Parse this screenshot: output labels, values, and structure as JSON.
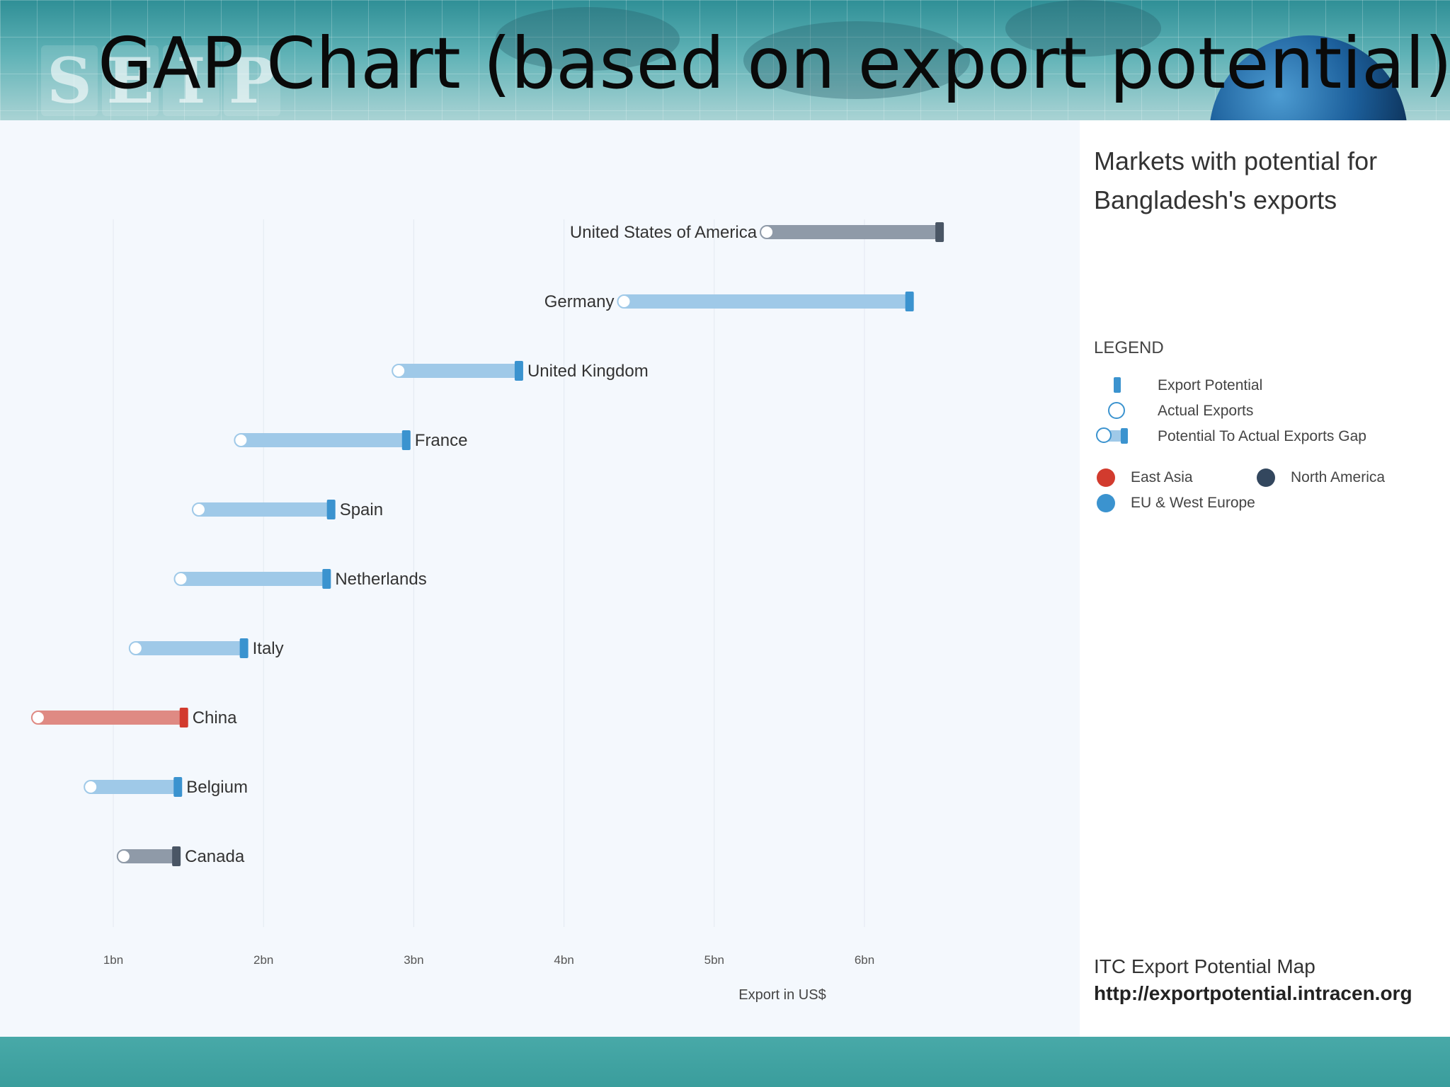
{
  "slide": {
    "title": "GAP Chart (based on export potential)",
    "logo_letters": [
      "S",
      "E",
      "I",
      "P"
    ]
  },
  "legend": {
    "title": "LEGEND",
    "export_potential": "Export Potential",
    "actual_exports": "Actual Exports",
    "gap": "Potential To Actual Exports Gap",
    "regions": [
      {
        "name": "East Asia",
        "color": "#d23b2e"
      },
      {
        "name": "North America",
        "color": "#33475e"
      },
      {
        "name": "EU & West Europe",
        "color": "#3b93cf"
      }
    ]
  },
  "source": {
    "name": "ITC Export Potential Map",
    "url": "http://exportpotential.intracen.org"
  },
  "chart_data": {
    "type": "bar",
    "title": "Markets with potential for Bangladesh's exports",
    "xlabel": "Export in US$",
    "ylabel": "",
    "xlim": [
      0.55,
      6.75
    ],
    "xticks": [
      1,
      2,
      3,
      4,
      5,
      6
    ],
    "xtick_labels": [
      "1bn",
      "2bn",
      "3bn",
      "4bn",
      "5bn",
      "6bn"
    ],
    "grid": true,
    "legend_position": "right",
    "region_colors": {
      "East Asia": {
        "bar": "#df8a83",
        "mark": "#d23b2e"
      },
      "North America": {
        "bar": "#8f9aa8",
        "mark": "#4a5665"
      },
      "EU & West Europe": {
        "bar": "#9fc9e8",
        "mark": "#3b93cf"
      }
    },
    "markets": [
      {
        "name": "United States of America",
        "region": "North America",
        "actual": 5.35,
        "potential": 6.5,
        "label_side": "left"
      },
      {
        "name": "Germany",
        "region": "EU & West Europe",
        "actual": 4.4,
        "potential": 6.3,
        "label_side": "left"
      },
      {
        "name": "United Kingdom",
        "region": "EU & West Europe",
        "actual": 2.9,
        "potential": 3.7,
        "label_side": "right"
      },
      {
        "name": "France",
        "region": "EU & West Europe",
        "actual": 1.85,
        "potential": 2.95,
        "label_side": "right"
      },
      {
        "name": "Spain",
        "region": "EU & West Europe",
        "actual": 1.57,
        "potential": 2.45,
        "label_side": "right"
      },
      {
        "name": "Netherlands",
        "region": "EU & West Europe",
        "actual": 1.45,
        "potential": 2.42,
        "label_side": "right"
      },
      {
        "name": "Italy",
        "region": "EU & West Europe",
        "actual": 1.15,
        "potential": 1.87,
        "label_side": "right"
      },
      {
        "name": "China",
        "region": "East Asia",
        "actual": 0.5,
        "potential": 1.47,
        "label_side": "right"
      },
      {
        "name": "Belgium",
        "region": "EU & West Europe",
        "actual": 0.85,
        "potential": 1.43,
        "label_side": "right"
      },
      {
        "name": "Canada",
        "region": "North America",
        "actual": 1.07,
        "potential": 1.42,
        "label_side": "right"
      }
    ]
  }
}
